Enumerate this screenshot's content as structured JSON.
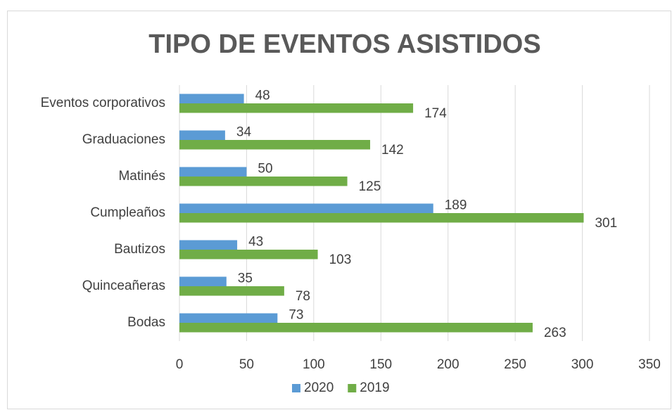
{
  "chart_data": {
    "type": "bar",
    "orientation": "horizontal",
    "title": "TIPO DE EVENTOS ASISTIDOS",
    "categories": [
      "Eventos corporativos",
      "Graduaciones",
      "Matinés",
      "Cumpleaños",
      "Bautizos",
      "Quinceañeras",
      "Bodas"
    ],
    "series": [
      {
        "name": "2020",
        "color": "#5b9bd5",
        "values": [
          48,
          34,
          50,
          189,
          43,
          35,
          73
        ]
      },
      {
        "name": "2019",
        "color": "#70ad47",
        "values": [
          174,
          142,
          125,
          301,
          103,
          78,
          263
        ]
      }
    ],
    "xlim": [
      0,
      350
    ],
    "xticks": [
      0,
      50,
      100,
      150,
      200,
      250,
      300,
      350
    ],
    "grid": true,
    "legend": "bottom"
  }
}
